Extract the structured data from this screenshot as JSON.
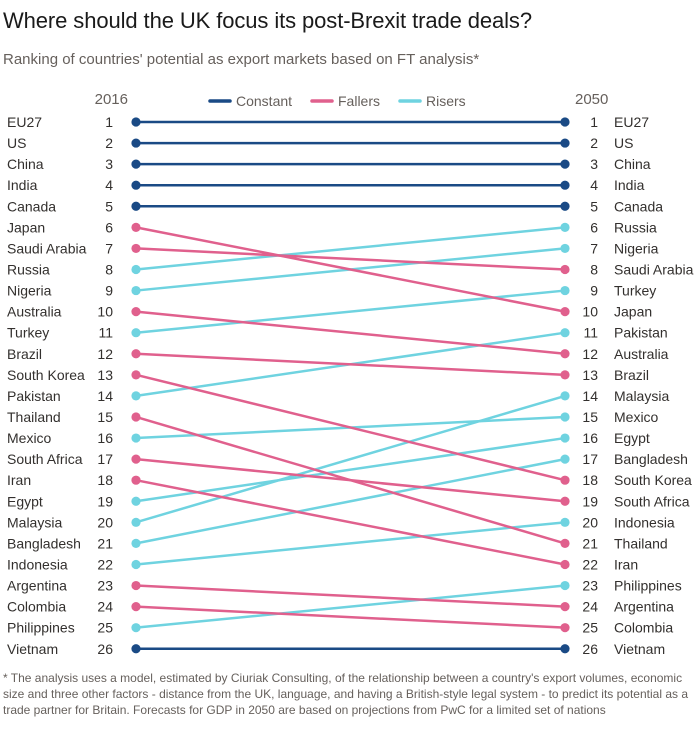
{
  "title": "Where should the UK focus its post-Brexit trade deals?",
  "subtitle": "Ranking of countries' potential as export markets based on FT analysis*",
  "footnote": "* The analysis uses a model, estimated by Ciuriak Consulting, of the relationship between a country's export volumes, economic size and three other factors - distance from the UK, language, and having a British-style legal system - to predict its potential as a trade partner for Britain. Forecasts for GDP in 2050 are based on projections from PwC for a limited set of nations",
  "colors": {
    "Constant": "#1a4a85",
    "Fallers": "#e0608d",
    "Risers": "#6fd3e0",
    "text": "#33302e",
    "muted": "#66605c"
  },
  "chart_data": {
    "type": "slope",
    "x": [
      "2016",
      "2050"
    ],
    "legend": [
      "Constant",
      "Fallers",
      "Risers"
    ],
    "legend_position": "top-center",
    "countries": [
      {
        "name": "EU27",
        "rank_2016": 1,
        "rank_2050": 1,
        "group": "Constant"
      },
      {
        "name": "US",
        "rank_2016": 2,
        "rank_2050": 2,
        "group": "Constant"
      },
      {
        "name": "China",
        "rank_2016": 3,
        "rank_2050": 3,
        "group": "Constant"
      },
      {
        "name": "India",
        "rank_2016": 4,
        "rank_2050": 4,
        "group": "Constant"
      },
      {
        "name": "Canada",
        "rank_2016": 5,
        "rank_2050": 5,
        "group": "Constant"
      },
      {
        "name": "Japan",
        "rank_2016": 6,
        "rank_2050": 10,
        "group": "Fallers"
      },
      {
        "name": "Saudi Arabia",
        "rank_2016": 7,
        "rank_2050": 8,
        "group": "Fallers"
      },
      {
        "name": "Russia",
        "rank_2016": 8,
        "rank_2050": 6,
        "group": "Risers"
      },
      {
        "name": "Nigeria",
        "rank_2016": 9,
        "rank_2050": 7,
        "group": "Risers"
      },
      {
        "name": "Australia",
        "rank_2016": 10,
        "rank_2050": 12,
        "group": "Fallers"
      },
      {
        "name": "Turkey",
        "rank_2016": 11,
        "rank_2050": 9,
        "group": "Risers"
      },
      {
        "name": "Brazil",
        "rank_2016": 12,
        "rank_2050": 13,
        "group": "Fallers"
      },
      {
        "name": "South Korea",
        "rank_2016": 13,
        "rank_2050": 18,
        "group": "Fallers"
      },
      {
        "name": "Pakistan",
        "rank_2016": 14,
        "rank_2050": 11,
        "group": "Risers"
      },
      {
        "name": "Thailand",
        "rank_2016": 15,
        "rank_2050": 21,
        "group": "Fallers"
      },
      {
        "name": "Mexico",
        "rank_2016": 16,
        "rank_2050": 15,
        "group": "Risers"
      },
      {
        "name": "South Africa",
        "rank_2016": 17,
        "rank_2050": 19,
        "group": "Fallers"
      },
      {
        "name": "Iran",
        "rank_2016": 18,
        "rank_2050": 22,
        "group": "Fallers"
      },
      {
        "name": "Egypt",
        "rank_2016": 19,
        "rank_2050": 16,
        "group": "Risers"
      },
      {
        "name": "Malaysia",
        "rank_2016": 20,
        "rank_2050": 14,
        "group": "Risers"
      },
      {
        "name": "Bangladesh",
        "rank_2016": 21,
        "rank_2050": 17,
        "group": "Risers"
      },
      {
        "name": "Indonesia",
        "rank_2016": 22,
        "rank_2050": 20,
        "group": "Risers"
      },
      {
        "name": "Argentina",
        "rank_2016": 23,
        "rank_2050": 24,
        "group": "Fallers"
      },
      {
        "name": "Colombia",
        "rank_2016": 24,
        "rank_2050": 25,
        "group": "Fallers"
      },
      {
        "name": "Philippines",
        "rank_2016": 25,
        "rank_2050": 23,
        "group": "Risers"
      },
      {
        "name": "Vietnam",
        "rank_2016": 26,
        "rank_2050": 26,
        "group": "Constant"
      }
    ]
  }
}
